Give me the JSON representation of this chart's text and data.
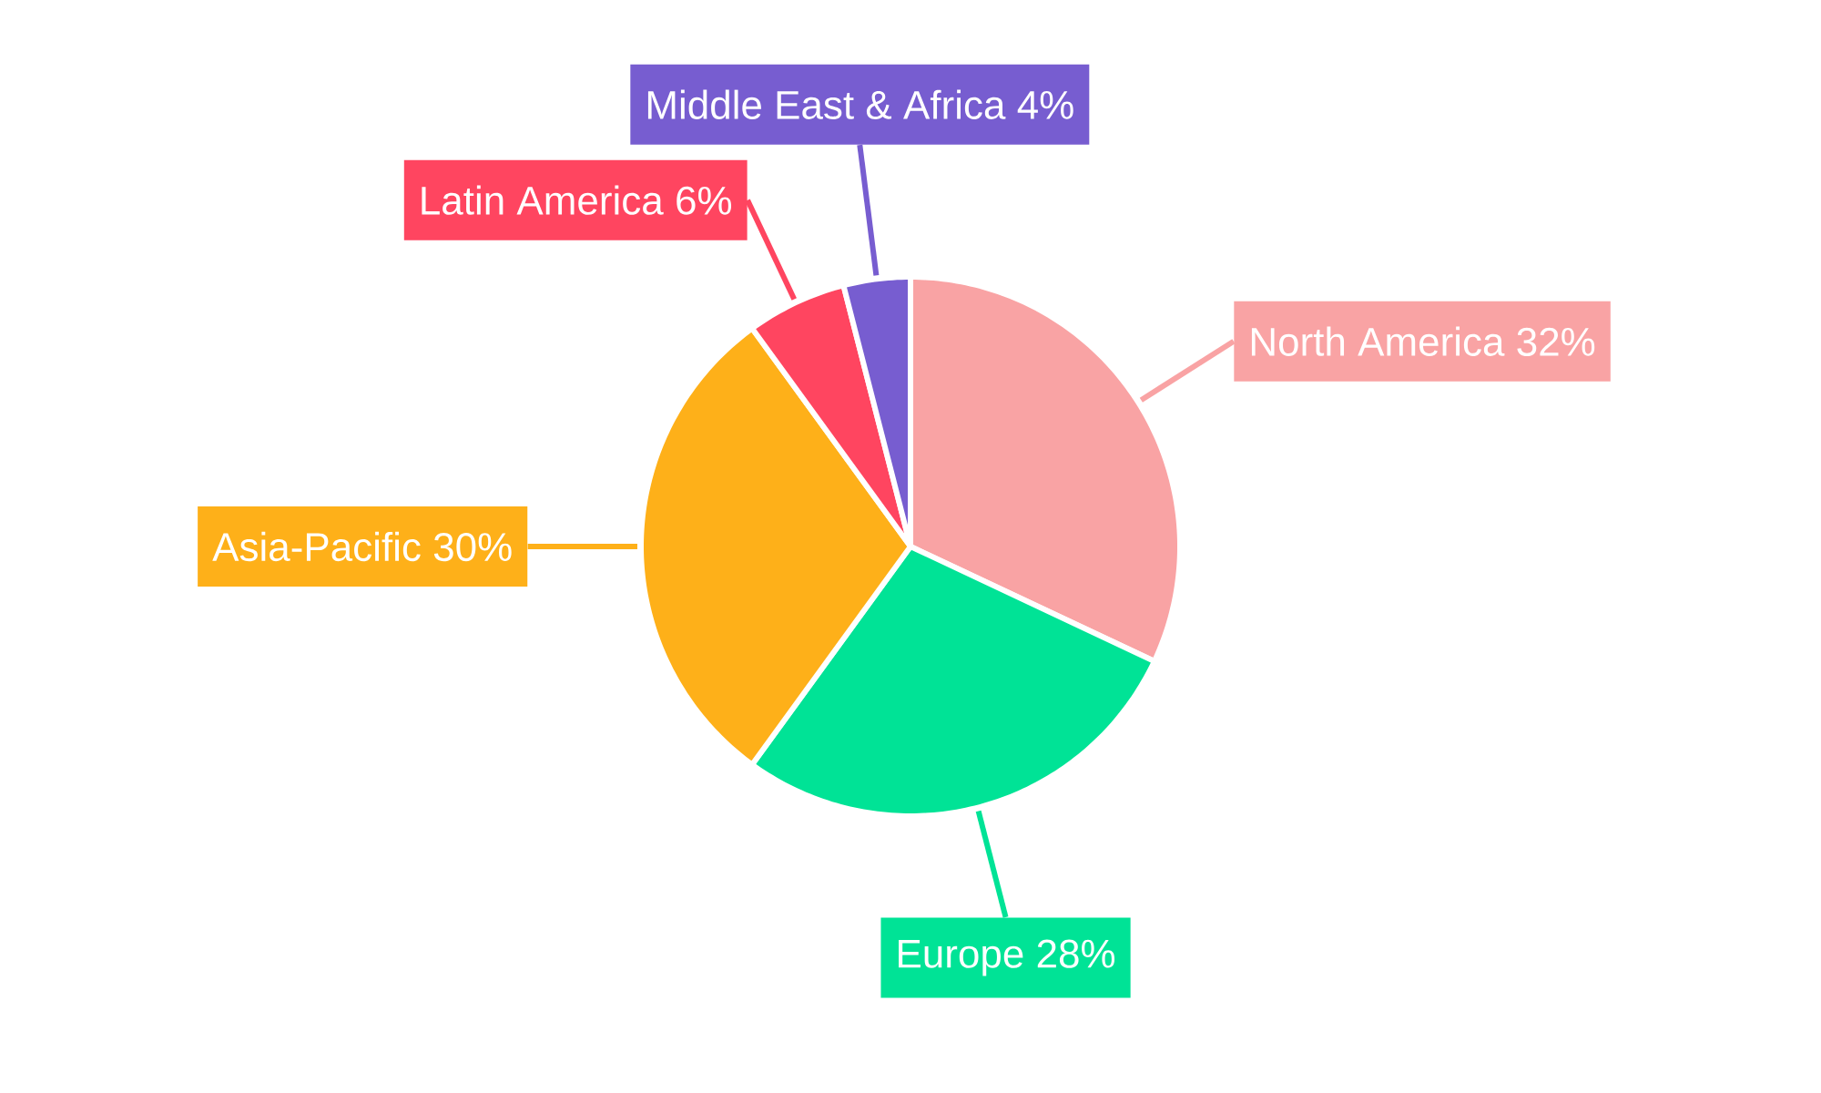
{
  "chart_data": {
    "type": "pie",
    "categories": [
      "North America",
      "Europe",
      "Asia-Pacific",
      "Latin America",
      "Middle East & Africa"
    ],
    "values": [
      32,
      28,
      30,
      6,
      4
    ],
    "value_labels": [
      "32%",
      "28%",
      "30%",
      "6%",
      "4%"
    ],
    "colors": [
      "#f9a3a4",
      "#00e396",
      "#feb019",
      "#ff4560",
      "#775dd0"
    ]
  }
}
